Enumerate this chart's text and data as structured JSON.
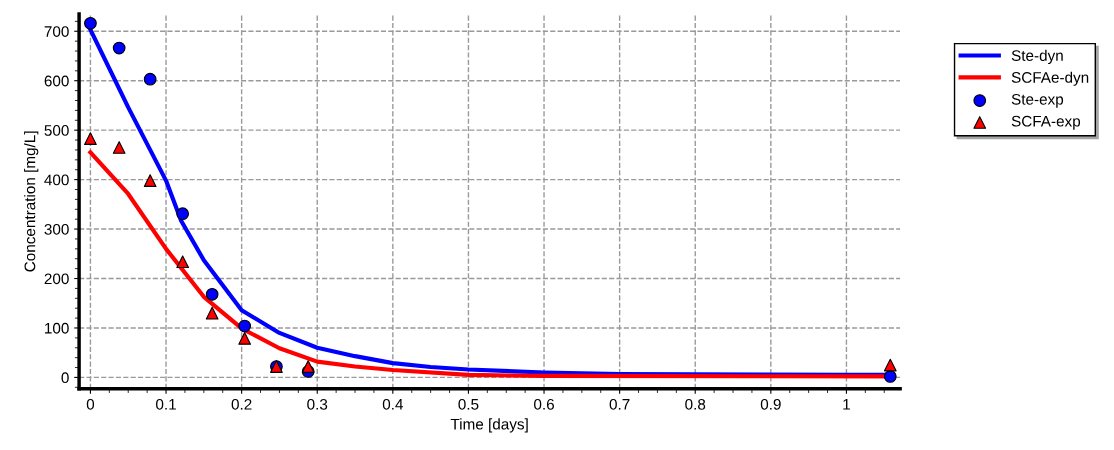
{
  "chart_data": {
    "type": "line",
    "xlabel": "Time [days]",
    "ylabel": "Concentration [mg/L]",
    "xlim": [
      -0.015,
      1.071
    ],
    "ylim": [
      -23,
      735
    ],
    "xticks": [
      0,
      0.1,
      0.2,
      0.3,
      0.4,
      0.5,
      0.6,
      0.7,
      0.8,
      0.9,
      1
    ],
    "yticks": [
      0,
      100,
      200,
      300,
      400,
      500,
      600,
      700
    ],
    "grid": true,
    "legend": "top right",
    "series": [
      {
        "name": "Ste-dyn",
        "color": "#0000ff",
        "marker": "none",
        "line_style": "solid",
        "x": [
          0,
          0.05,
          0.1,
          0.12,
          0.15,
          0.2,
          0.25,
          0.3,
          0.35,
          0.4,
          0.45,
          0.5,
          0.6,
          0.7,
          1.0,
          1.058
        ],
        "values": [
          703,
          546,
          398,
          317,
          237,
          136,
          90,
          60,
          43,
          29,
          21,
          16,
          10,
          7,
          5,
          5
        ]
      },
      {
        "name": "SCFAe-dyn",
        "color": "#ff0000",
        "marker": "none",
        "line_style": "solid",
        "x": [
          0,
          0.05,
          0.1,
          0.15,
          0.2,
          0.25,
          0.3,
          0.35,
          0.4,
          0.5,
          0.6,
          1.058
        ],
        "values": [
          455,
          371,
          260,
          163,
          99,
          59,
          32,
          22,
          15,
          5,
          3,
          2
        ]
      },
      {
        "name": "Ste-exp",
        "type": "scatter",
        "color": "#0000ff",
        "marker": "circle",
        "x": [
          0,
          0.038,
          0.079,
          0.122,
          0.161,
          0.204,
          0.246,
          0.288,
          1.058
        ],
        "values": [
          716,
          666,
          603,
          331,
          168,
          104,
          22,
          12,
          2
        ]
      },
      {
        "name": "SCFA-exp",
        "type": "scatter",
        "color": "#ff0000",
        "marker": "triangle",
        "x": [
          0,
          0.038,
          0.079,
          0.122,
          0.161,
          0.204,
          0.246,
          0.288,
          1.058
        ],
        "values": [
          483,
          465,
          398,
          234,
          130,
          79,
          22,
          22,
          25
        ]
      }
    ]
  }
}
